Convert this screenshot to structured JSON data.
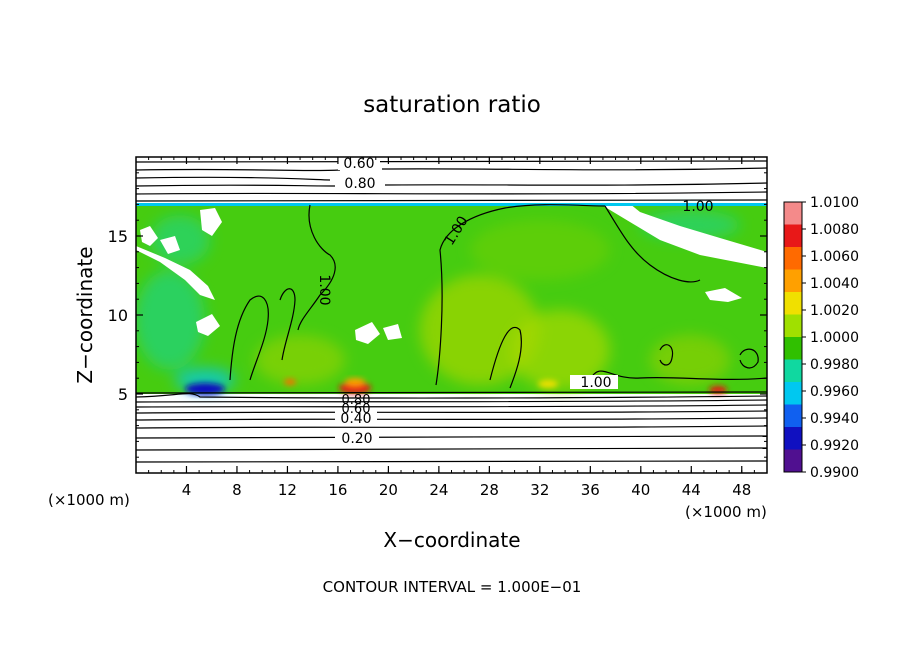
{
  "chart_data": {
    "type": "heatmap",
    "title": "saturation ratio",
    "xlabel": "X−coordinate",
    "ylabel": "Z−coordinate",
    "x_unit_left": "(×1000 m)",
    "x_unit_right": "(×1000 m)",
    "footer": "CONTOUR INTERVAL = 1.000E−01",
    "xlim": [
      0,
      50
    ],
    "ylim": [
      0,
      20
    ],
    "x_ticks": [
      4,
      8,
      12,
      16,
      20,
      24,
      28,
      32,
      36,
      40,
      44,
      48
    ],
    "y_ticks": [
      5,
      10,
      15
    ],
    "colorbar": {
      "labels": [
        "1.0100",
        "1.0080",
        "1.0060",
        "1.0040",
        "1.0020",
        "1.0000",
        "0.9980",
        "0.9960",
        "0.9940",
        "0.9920",
        "0.9900"
      ],
      "colors": [
        "#f48a8a",
        "#e81818",
        "#ff6a00",
        "#ffa000",
        "#f0e000",
        "#a0e000",
        "#30c000",
        "#10d8a0",
        "#00c8f0",
        "#1060f0",
        "#1010c0",
        "#501090"
      ]
    },
    "contour_labels": {
      "top": [
        "0.60",
        "0.80"
      ],
      "cloud": [
        "1.00",
        "1.00",
        "1.00",
        "1.00"
      ],
      "bottom": [
        "0.80",
        "0.60",
        "0.40",
        "0.20"
      ]
    }
  }
}
